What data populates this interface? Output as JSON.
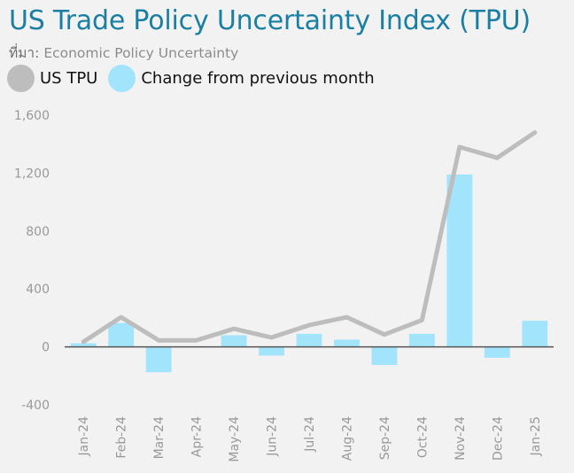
{
  "header": {
    "title": "US Trade Policy Uncertainty Index (TPU)",
    "source_label": "ที่มา:",
    "source_value": "Economic Policy Uncertainty"
  },
  "legend": [
    {
      "label": "US TPU",
      "color": "#bdbdbd"
    },
    {
      "label": "Change from previous month",
      "color": "#a3e4fd"
    }
  ],
  "colors": {
    "line": "#bdbdbd",
    "bar": "#a3e4fd",
    "axis": "#555555",
    "tick": "#999999"
  },
  "chart_data": {
    "type": "bar",
    "categories": [
      "Jan-24",
      "Feb-24",
      "Mar-24",
      "Apr-24",
      "May-24",
      "Jun-24",
      "Jul-24",
      "Aug-24",
      "Sep-24",
      "Oct-24",
      "Nov-24",
      "Dec-24",
      "Jan-25"
    ],
    "ylim": [
      -400,
      1600
    ],
    "yticks": [
      -400,
      0,
      400,
      800,
      1200,
      1600
    ],
    "ytick_labels": [
      "-400",
      "0",
      "400",
      "800",
      "1,200",
      "1,600"
    ],
    "grid": false,
    "legend_position": "top-left",
    "series": [
      {
        "name": "Change from previous month",
        "type": "bar",
        "values": [
          25,
          165,
          -175,
          0,
          80,
          -60,
          90,
          50,
          -125,
          90,
          1190,
          -75,
          180
        ]
      },
      {
        "name": "US TPU",
        "type": "line",
        "values": [
          35,
          205,
          45,
          45,
          125,
          65,
          150,
          205,
          85,
          185,
          1380,
          1305,
          1480
        ]
      }
    ]
  }
}
